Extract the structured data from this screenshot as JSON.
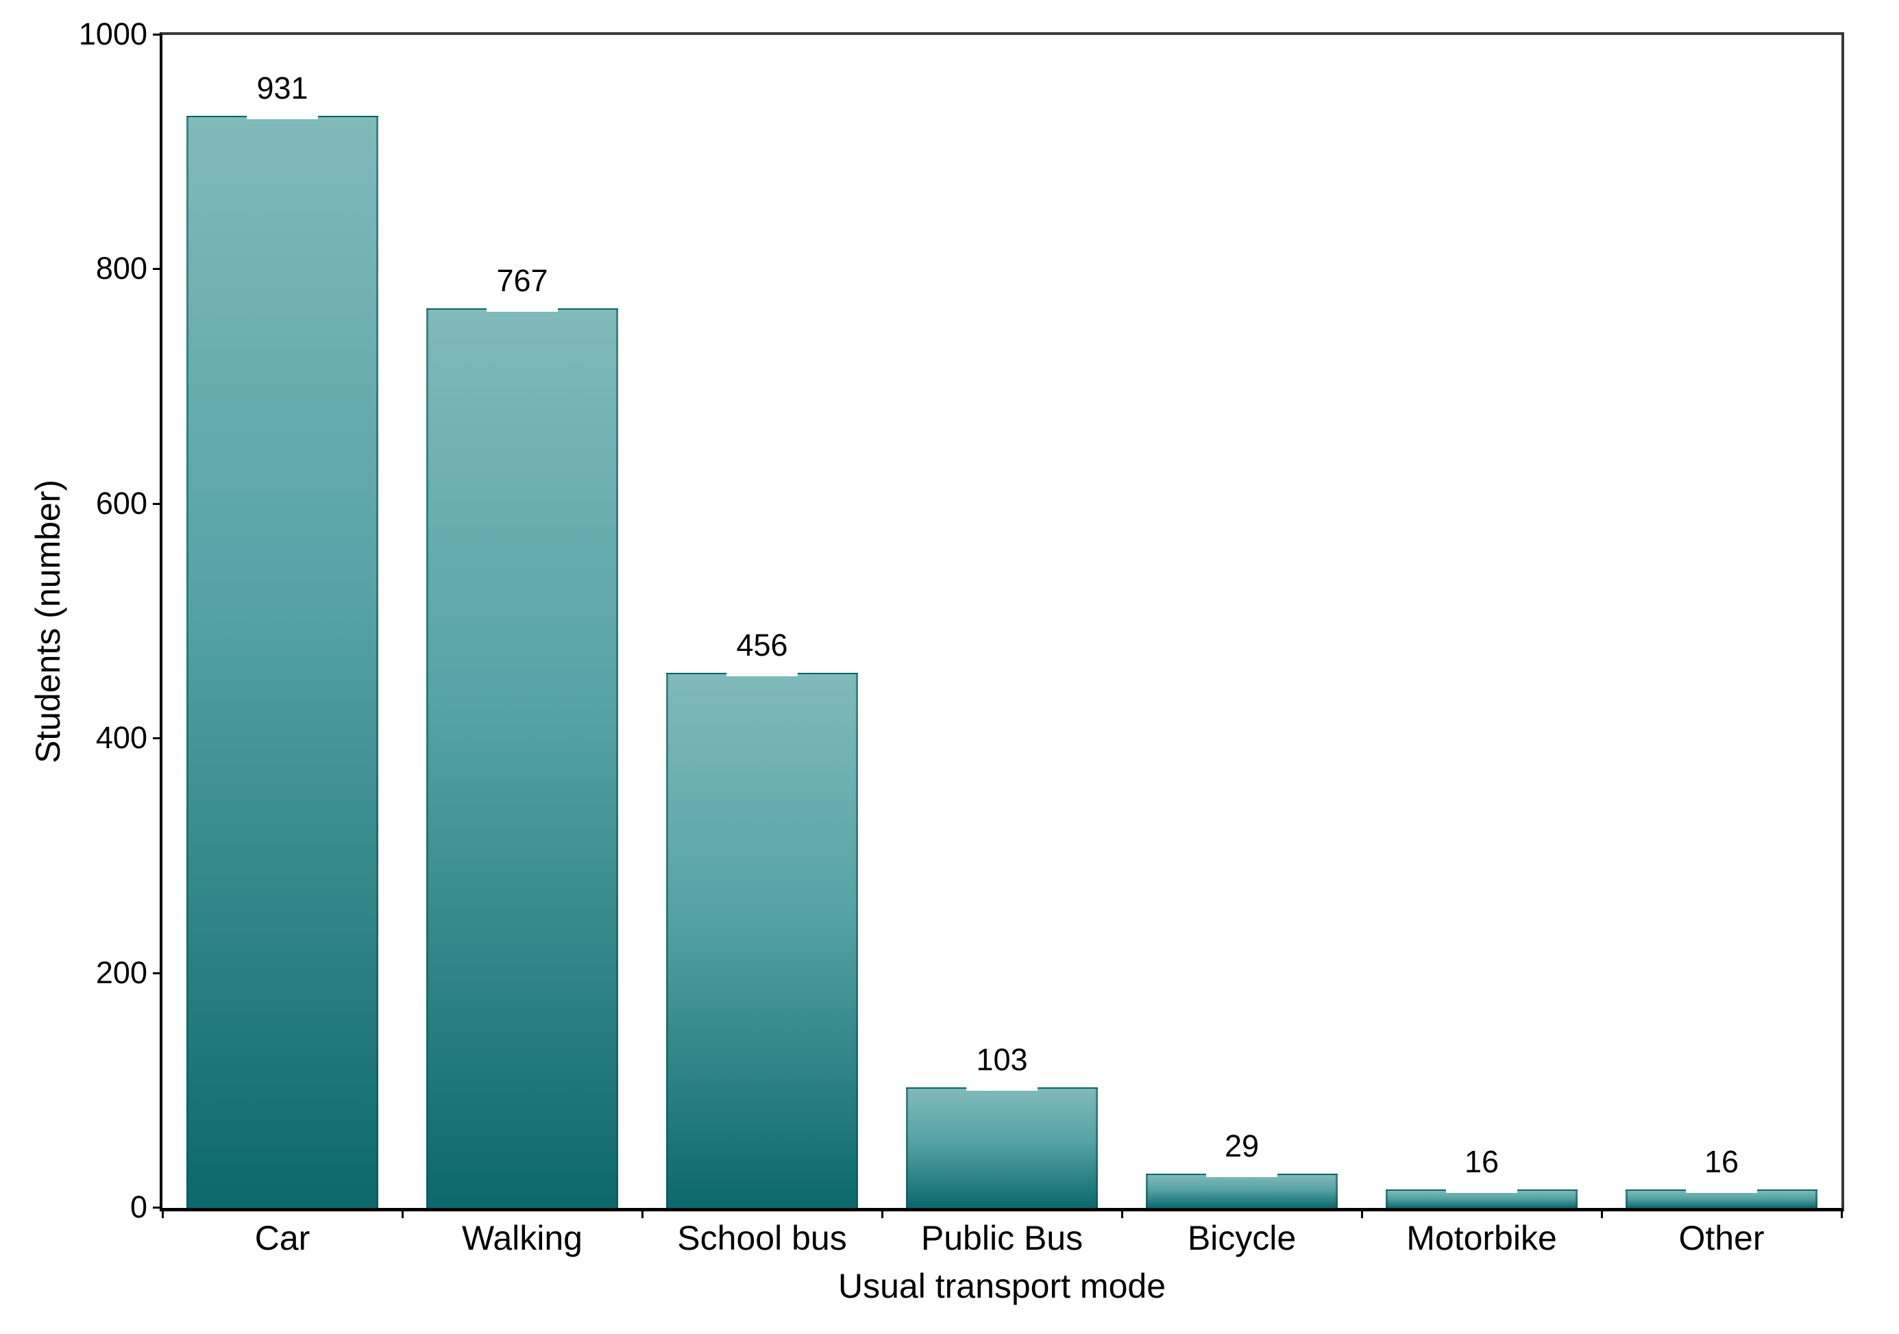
{
  "chart_data": {
    "type": "bar",
    "title": "",
    "categories": [
      "Car",
      "Walking",
      "School bus",
      "Public Bus",
      "Bicycle",
      "Motorbike",
      "Other"
    ],
    "values": [
      931,
      767,
      456,
      103,
      29,
      16,
      16
    ],
    "xlabel": "Usual transport mode",
    "ylabel": "Students (number)",
    "ylim": [
      0,
      1000
    ],
    "yticks": [
      0,
      200,
      400,
      600,
      800,
      1000
    ],
    "grid": "off",
    "legend": "none",
    "value_labels_shown": true,
    "colors": {
      "bar_gradient_top": "#80babb",
      "bar_gradient_bottom": "#0b696b",
      "bar_edge": "#095658",
      "axis_line": "#000000",
      "spine": "#383838",
      "text": "#000000",
      "background": "#ffffff"
    }
  }
}
